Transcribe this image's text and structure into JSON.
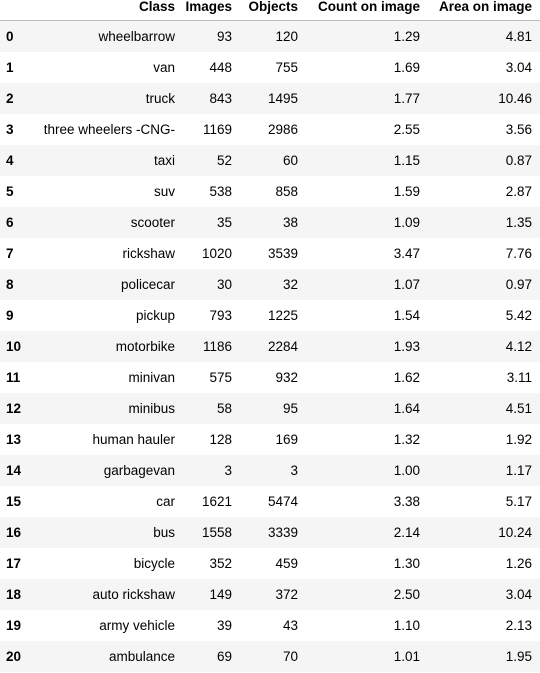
{
  "table": {
    "columns": [
      "",
      "Class",
      "Images",
      "Objects",
      "Count on image",
      "Area on image"
    ],
    "rows": [
      [
        "0",
        "wheelbarrow",
        "93",
        "120",
        "1.29",
        "4.81"
      ],
      [
        "1",
        "van",
        "448",
        "755",
        "1.69",
        "3.04"
      ],
      [
        "2",
        "truck",
        "843",
        "1495",
        "1.77",
        "10.46"
      ],
      [
        "3",
        "three wheelers -CNG-",
        "1169",
        "2986",
        "2.55",
        "3.56"
      ],
      [
        "4",
        "taxi",
        "52",
        "60",
        "1.15",
        "0.87"
      ],
      [
        "5",
        "suv",
        "538",
        "858",
        "1.59",
        "2.87"
      ],
      [
        "6",
        "scooter",
        "35",
        "38",
        "1.09",
        "1.35"
      ],
      [
        "7",
        "rickshaw",
        "1020",
        "3539",
        "3.47",
        "7.76"
      ],
      [
        "8",
        "policecar",
        "30",
        "32",
        "1.07",
        "0.97"
      ],
      [
        "9",
        "pickup",
        "793",
        "1225",
        "1.54",
        "5.42"
      ],
      [
        "10",
        "motorbike",
        "1186",
        "2284",
        "1.93",
        "4.12"
      ],
      [
        "11",
        "minivan",
        "575",
        "932",
        "1.62",
        "3.11"
      ],
      [
        "12",
        "minibus",
        "58",
        "95",
        "1.64",
        "4.51"
      ],
      [
        "13",
        "human hauler",
        "128",
        "169",
        "1.32",
        "1.92"
      ],
      [
        "14",
        "garbagevan",
        "3",
        "3",
        "1.00",
        "1.17"
      ],
      [
        "15",
        "car",
        "1621",
        "5474",
        "3.38",
        "5.17"
      ],
      [
        "16",
        "bus",
        "1558",
        "3339",
        "2.14",
        "10.24"
      ],
      [
        "17",
        "bicycle",
        "352",
        "459",
        "1.30",
        "1.26"
      ],
      [
        "18",
        "auto rickshaw",
        "149",
        "372",
        "2.50",
        "3.04"
      ],
      [
        "19",
        "army vehicle",
        "39",
        "43",
        "1.10",
        "2.13"
      ],
      [
        "20",
        "ambulance",
        "69",
        "70",
        "1.01",
        "1.95"
      ]
    ]
  }
}
